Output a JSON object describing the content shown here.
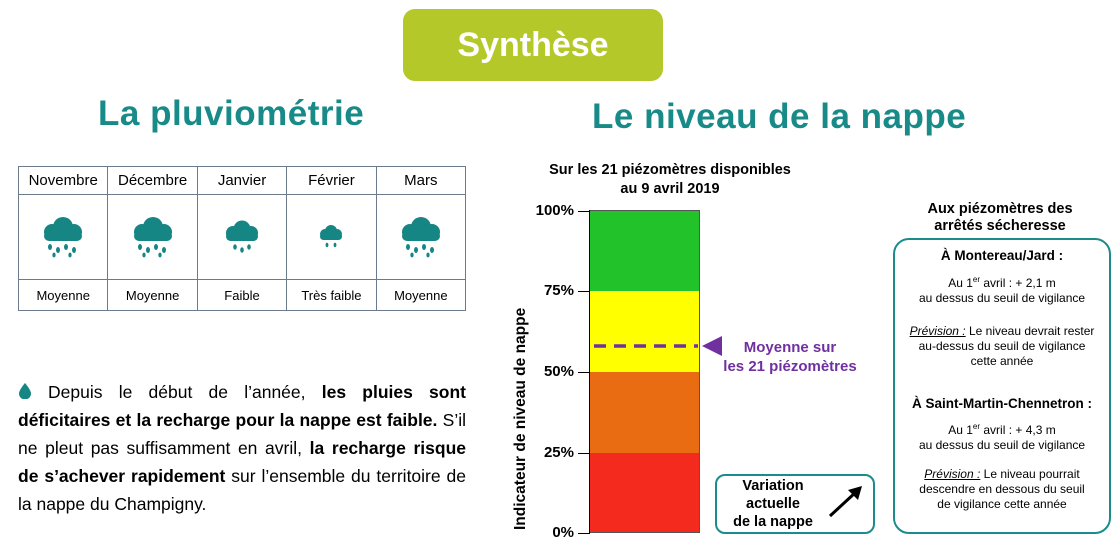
{
  "header": {
    "title": "Synthèse"
  },
  "left": {
    "title": "La pluviométrie",
    "months": [
      {
        "name": "Novembre",
        "status": "Moyenne",
        "icon": "rain-cloud-icon"
      },
      {
        "name": "Décembre",
        "status": "Moyenne",
        "icon": "rain-cloud-icon"
      },
      {
        "name": "Janvier",
        "status": "Faible",
        "icon": "rain-cloud-icon"
      },
      {
        "name": "Février",
        "status": "Très faible",
        "icon": "rain-cloud-icon"
      },
      {
        "name": "Mars",
        "status": "Moyenne",
        "icon": "rain-cloud-icon"
      }
    ],
    "paragraph": {
      "p1": "Depuis le début de l’année, ",
      "b1": "les pluies sont déficitaires et la recharge pour la nappe est faible.",
      "p2": " S’il ne pleut pas suffisamment en avril, ",
      "b2": "la recharge risque de s’achever rapidement",
      "p3": " sur l’ensemble du territoire de la nappe du Champigny."
    }
  },
  "middle": {
    "title": "Le niveau de la nappe",
    "gauge_title_1": "Sur les 21 piézomètres disponibles",
    "gauge_title_2": "au 9 avril 2019",
    "axis_label": "Indicateur de niveau de nappe",
    "ticks": [
      "100%",
      "75%",
      "50%",
      "25%",
      "0%"
    ],
    "level_percent": 58,
    "level_label_1": "Moyenne sur",
    "level_label_2": "les 21 piézomètres",
    "variation_1": "Variation",
    "variation_2": "actuelle",
    "variation_3": "de la nappe",
    "colors": {
      "top": "#22c22a",
      "upper_mid": "#ffff00",
      "lower_mid": "#ea6c12",
      "bottom": "#f52a1f",
      "marker": "#7030a0"
    }
  },
  "right": {
    "title_1": "Aux piézomètres des",
    "title_2": "arrêtés sécheresse",
    "s1_head": "À Montereau/Jard :",
    "s1_l1a": "Au 1",
    "s1_l1sup": "er",
    "s1_l1b": " avril : + 2,1 m",
    "s1_l2": "au dessus du seuil de vigilance",
    "s1_prev_label": "Prévision :",
    "s1_prev_1": " Le niveau devrait rester",
    "s1_prev_2": "au-dessus du seuil de vigilance",
    "s1_prev_3": "cette année",
    "s2_head": "À Saint-Martin-Chennetron :",
    "s2_l1a": "Au 1",
    "s2_l1sup": "er",
    "s2_l1b": " avril : + 4,3 m",
    "s2_l2": "au dessus du seuil de vigilance",
    "s2_prev_label": "Prévision :",
    "s2_prev_1": " Le niveau pourrait",
    "s2_prev_2": "descendre en dessous du seuil",
    "s2_prev_3": "de vigilance cette année"
  }
}
